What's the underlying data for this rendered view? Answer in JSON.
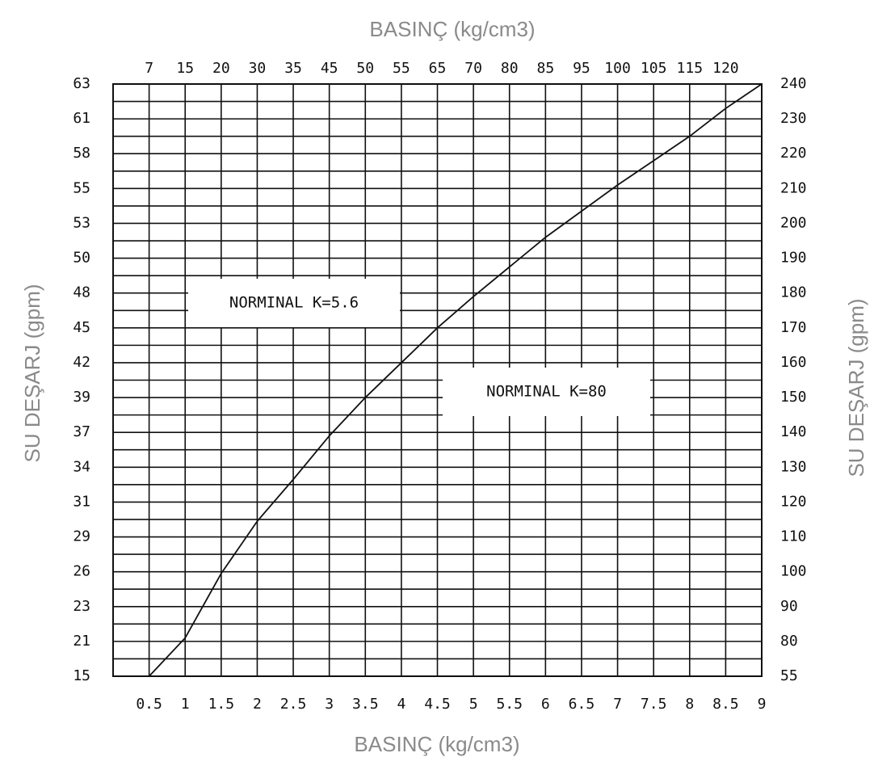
{
  "chart_data": {
    "type": "line",
    "x_title": "BASINÇ (kg/cm3)",
    "x2_title": "BASINÇ (kg/cm3)",
    "y_title": "SU DEŞARJ (gpm)",
    "y2_title": "SU DEŞARJ (gpm)",
    "annotations": [
      "NORMINAL K=5.6",
      "NORMINAL K=80"
    ],
    "xlim": [
      0,
      9
    ],
    "xticks": [
      0.5,
      1,
      1.5,
      2,
      2.5,
      3,
      3.5,
      4,
      4.5,
      5,
      5.5,
      6,
      6.5,
      7,
      7.5,
      8,
      8.5,
      9
    ],
    "x2ticks": [
      {
        "value": 0.5,
        "label": "7"
      },
      {
        "value": 1,
        "label": "15"
      },
      {
        "value": 1.5,
        "label": "20"
      },
      {
        "value": 2,
        "label": "30"
      },
      {
        "value": 2.5,
        "label": "35"
      },
      {
        "value": 3,
        "label": "45"
      },
      {
        "value": 3.5,
        "label": "50"
      },
      {
        "value": 4,
        "label": "55"
      },
      {
        "value": 4.5,
        "label": "65"
      },
      {
        "value": 5,
        "label": "70"
      },
      {
        "value": 5.5,
        "label": "80"
      },
      {
        "value": 6,
        "label": "85"
      },
      {
        "value": 6.5,
        "label": "95"
      },
      {
        "value": 7,
        "label": "100"
      },
      {
        "value": 7.5,
        "label": "105"
      },
      {
        "value": 8,
        "label": "115"
      },
      {
        "value": 8.5,
        "label": "120"
      }
    ],
    "ylim": [
      0,
      17
    ],
    "yticks": [
      {
        "value": 0,
        "label": "15"
      },
      {
        "value": 1,
        "label": "21"
      },
      {
        "value": 2,
        "label": "23"
      },
      {
        "value": 3,
        "label": "26"
      },
      {
        "value": 4,
        "label": "29"
      },
      {
        "value": 5,
        "label": "31"
      },
      {
        "value": 6,
        "label": "34"
      },
      {
        "value": 7,
        "label": "37"
      },
      {
        "value": 8,
        "label": "39"
      },
      {
        "value": 9,
        "label": "42"
      },
      {
        "value": 10,
        "label": "45"
      },
      {
        "value": 11,
        "label": "48"
      },
      {
        "value": 12,
        "label": "50"
      },
      {
        "value": 13,
        "label": "53"
      },
      {
        "value": 14,
        "label": "55"
      },
      {
        "value": 15,
        "label": "58"
      },
      {
        "value": 16,
        "label": "61"
      },
      {
        "value": 17,
        "label": "63"
      }
    ],
    "y2lim": [
      0,
      17
    ],
    "y2ticks": [
      {
        "value": 0,
        "label": "55"
      },
      {
        "value": 1,
        "label": "80"
      },
      {
        "value": 2,
        "label": "90"
      },
      {
        "value": 3,
        "label": "100"
      },
      {
        "value": 4,
        "label": "110"
      },
      {
        "value": 5,
        "label": "120"
      },
      {
        "value": 6,
        "label": "130"
      },
      {
        "value": 7,
        "label": "140"
      },
      {
        "value": 8,
        "label": "150"
      },
      {
        "value": 9,
        "label": "160"
      },
      {
        "value": 10,
        "label": "170"
      },
      {
        "value": 11,
        "label": "180"
      },
      {
        "value": 12,
        "label": "190"
      },
      {
        "value": 13,
        "label": "200"
      },
      {
        "value": 14,
        "label": "210"
      },
      {
        "value": 15,
        "label": "220"
      },
      {
        "value": 16,
        "label": "230"
      },
      {
        "value": 17,
        "label": "240"
      }
    ],
    "grid": true,
    "series": [
      {
        "color": "#111111",
        "x": [
          0.5,
          1,
          1.5,
          2,
          2.5,
          3,
          3.5,
          4,
          4.5,
          5,
          5.5,
          6,
          6.5,
          7,
          7.5,
          8,
          8.5,
          9
        ],
        "values": [
          0,
          1.1,
          2.95,
          4.45,
          5.65,
          6.9,
          8.0,
          9.0,
          10.0,
          10.9,
          11.75,
          12.6,
          13.35,
          14.1,
          14.8,
          15.5,
          16.3,
          17
        ]
      }
    ]
  }
}
